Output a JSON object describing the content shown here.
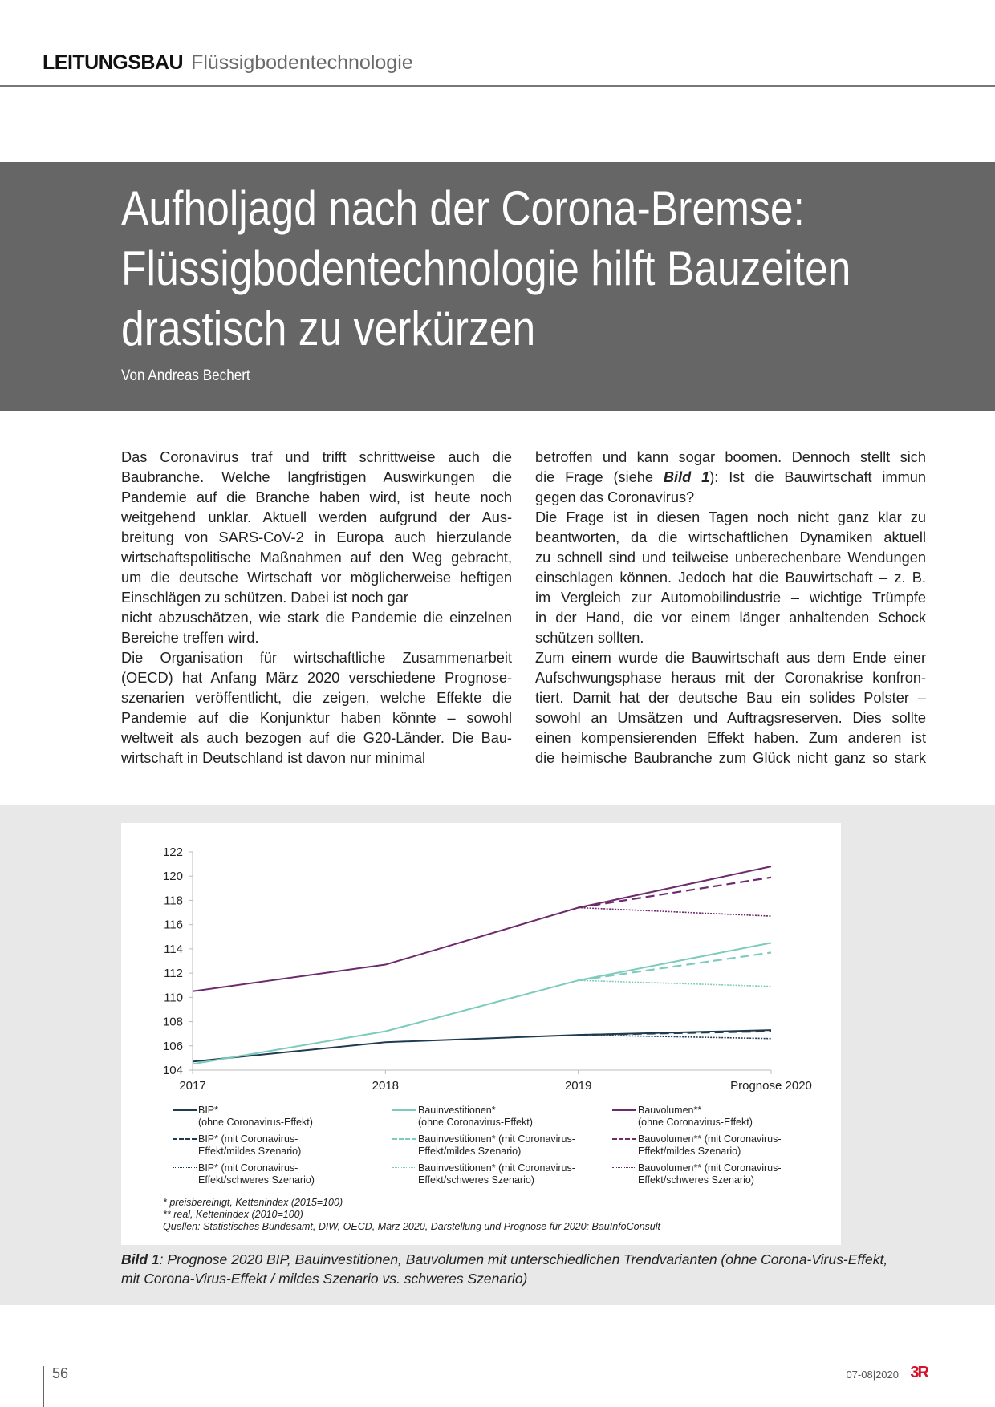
{
  "header": {
    "section": "LEITUNGSBAU",
    "topic": "Flüssigbodentechnologie"
  },
  "article": {
    "title_lines": [
      "Aufholjagd nach der Corona-Bremse:",
      "Flüssigbodentechnologie hilft Bauzeiten",
      "drastisch zu verkürzen"
    ],
    "byline": "Von Andreas Bechert",
    "left_column": [
      {
        "t": "Das Coronavirus traf und trifft schrittweise auch die",
        "j": true
      },
      {
        "t": "Baubranche. Welche langfristigen Auswirkungen die",
        "j": true
      },
      {
        "t": "Pandemie auf die Branche haben wird, ist heute noch",
        "j": true
      },
      {
        "t": "weitgehend unklar. Aktuell werden aufgrund der Aus-",
        "j": true
      },
      {
        "t": "breitung von SARS-CoV-2 in Europa auch hierzulande",
        "j": true
      },
      {
        "t": "wirtschaftspolitische Maßnahmen auf den Weg gebracht,",
        "j": true
      },
      {
        "t": "um die deutsche Wirtschaft vor möglicherweise heftigen",
        "j": true
      },
      {
        "t": "Einschlägen zu schützen. Dabei ist noch gar",
        "j": false
      },
      {
        "t": "nicht abzuschätzen, wie stark die Pandemie die einzelnen",
        "j": true
      },
      {
        "t": "Bereiche treffen wird.",
        "j": false
      },
      {
        "t": "Die Organisation für wirtschaftliche Zusammenarbeit",
        "j": true
      },
      {
        "t": "(OECD) hat Anfang März 2020 verschiedene Prognose-",
        "j": true
      },
      {
        "t": "szenarien veröffentlicht, die zeigen, welche Effekte die",
        "j": true
      },
      {
        "t": "Pandemie auf die Konjunktur haben könnte – sowohl",
        "j": true
      },
      {
        "t": "weltweit als auch bezogen auf die G20-Länder. Die Bau-",
        "j": true
      },
      {
        "t": "wirtschaft in Deutschland ist davon nur minimal",
        "j": false
      }
    ],
    "right_column": [
      {
        "t": "betroffen und kann sogar boomen. Dennoch stellt sich",
        "j": true
      },
      {
        "t": "",
        "j": true
      },
      {
        "t": "gegen das Coronavirus?",
        "j": false
      },
      {
        "t": "Die Frage ist in diesen Tagen noch nicht ganz klar zu",
        "j": true
      },
      {
        "t": "beantworten, da die wirtschaftlichen Dynamiken aktuell",
        "j": true
      },
      {
        "t": "zu schnell sind und teilweise unberechenbare Wendungen",
        "j": true
      },
      {
        "t": "einschlagen können. Jedoch hat die Bauwirtschaft – z. B.",
        "j": true
      },
      {
        "t": "im Vergleich zur Automobilindustrie – wichtige Trümpfe",
        "j": true
      },
      {
        "t": "in der Hand, die vor einem länger anhaltenden Schock",
        "j": true
      },
      {
        "t": "schützen sollten.",
        "j": false
      },
      {
        "t": "Zum einem wurde die Bauwirtschaft aus dem Ende einer",
        "j": true
      },
      {
        "t": "Aufschwungsphase heraus mit der Coronakrise konfron-",
        "j": true
      },
      {
        "t": "tiert. Damit hat der deutsche Bau ein solides Polster –",
        "j": true
      },
      {
        "t": "sowohl an Umsätzen und Auftragsreserven. Dies sollte",
        "j": true
      },
      {
        "t": "einen kompensierenden Effekt haben. Zum anderen ist",
        "j": true
      },
      {
        "t": "die heimische Baubranche zum Glück nicht ganz so stark",
        "j": true
      }
    ],
    "right_line2": {
      "before": "die Frage (siehe ",
      "ref": "Bild 1",
      "after": "): Ist die Bauwirtschaft immun"
    }
  },
  "chart_data": {
    "type": "line",
    "categories": [
      "2017",
      "2018",
      "2019",
      "Prognose 2020"
    ],
    "ylim": [
      104,
      122
    ],
    "yticks": [
      104,
      106,
      108,
      110,
      112,
      114,
      116,
      118,
      120,
      122
    ],
    "grid": false,
    "legend_position": "bottom",
    "series": [
      {
        "name": "BIP*",
        "sub": "(ohne Coronavirus-Effekt)",
        "color": "#1f3b50",
        "style": "solid",
        "values": [
          104.7,
          106.3,
          106.9,
          107.3
        ]
      },
      {
        "name": "Bauinvestitionen*",
        "sub": "(ohne Coronavirus-Effekt)",
        "color": "#7ccbbd",
        "style": "solid",
        "values": [
          104.5,
          107.2,
          111.4,
          114.5
        ]
      },
      {
        "name": "Bauvolumen**",
        "sub": "(ohne Coronavirus-Effekt)",
        "color": "#6d2a6d",
        "style": "solid",
        "values": [
          110.5,
          112.7,
          117.4,
          120.8
        ]
      },
      {
        "name": "BIP* (mit Coronavirus-",
        "sub": "Effekt/mildes Szenario)",
        "color": "#1f3b50",
        "style": "dashed",
        "values": [
          null,
          null,
          106.9,
          107.2
        ]
      },
      {
        "name": "Bauinvestitionen*  (mit Coronavirus-",
        "sub": "Effekt/mildes Szenario)",
        "color": "#7ccbbd",
        "style": "dashed",
        "values": [
          null,
          null,
          111.4,
          113.7
        ]
      },
      {
        "name": "Bauvolumen**  (mit Coronavirus-",
        "sub": "Effekt/mildes Szenario)",
        "color": "#6d2a6d",
        "style": "dashed",
        "values": [
          null,
          null,
          117.4,
          119.9
        ]
      },
      {
        "name": "BIP* (mit Coronavirus-",
        "sub": "Effekt/schweres Szenario)",
        "color": "#1f3b50",
        "style": "dotted",
        "values": [
          null,
          null,
          106.9,
          106.6
        ]
      },
      {
        "name": "Bauinvestitionen*  (mit Coronavirus-",
        "sub": "Effekt/schweres Szenario)",
        "color": "#7ccbbd",
        "style": "dotted",
        "values": [
          null,
          null,
          111.4,
          110.9
        ]
      },
      {
        "name": "Bauvolumen**  (mit Coronavirus-",
        "sub": "Effekt/schweres Szenario)",
        "color": "#6d2a6d",
        "style": "dotted",
        "values": [
          null,
          null,
          117.4,
          116.7
        ]
      }
    ],
    "footnotes": [
      "* preisbereinigt, Kettenindex (2015=100)",
      "** real, Kettenindex (2010=100)",
      "Quellen: Statistisches Bundesamt, DIW, OECD, März 2020, Darstellung und Prognose für 2020: BauInfoConsult"
    ]
  },
  "caption": {
    "label": "Bild 1",
    "text": ": Prognose 2020 BIP, Bauinvestitionen, Bauvolumen mit unterschiedlichen Trendvarianten (ohne Corona-Virus-Effekt, mit Corona-Virus-Effekt / mildes Szenario vs. schweres Szenario)"
  },
  "footer": {
    "page": "56",
    "issue": "07-08|2020",
    "logo": "3R"
  }
}
